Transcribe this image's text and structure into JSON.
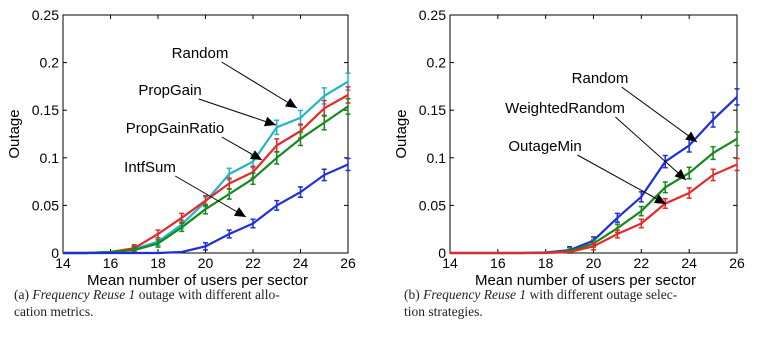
{
  "chart_data": [
    {
      "type": "line",
      "xlabel": "Mean number of users per sector",
      "ylabel": "Outage",
      "xlim": [
        14,
        26
      ],
      "ylim": [
        0,
        0.25
      ],
      "xticks": [
        14,
        16,
        18,
        20,
        22,
        24,
        26
      ],
      "yticks": [
        "0",
        "0.05",
        "0.1",
        "0.15",
        "0.2",
        "0.25"
      ],
      "x": [
        14,
        15,
        16,
        17,
        18,
        19,
        20,
        21,
        22,
        23,
        24,
        25,
        26
      ],
      "series": [
        {
          "name": "Random",
          "color": "#27b3c8",
          "values": [
            0,
            0,
            0.001,
            0.004,
            0.012,
            0.03,
            0.054,
            0.083,
            0.096,
            0.132,
            0.142,
            0.165,
            0.18
          ]
        },
        {
          "name": "PropGain",
          "color": "#e32a2a",
          "values": [
            0,
            0,
            0.001,
            0.005,
            0.02,
            0.037,
            0.055,
            0.073,
            0.085,
            0.113,
            0.128,
            0.152,
            0.166
          ]
        },
        {
          "name": "PropGainRatio",
          "color": "#16891c",
          "values": [
            0,
            0,
            0.001,
            0.003,
            0.01,
            0.027,
            0.046,
            0.062,
            0.078,
            0.1,
            0.12,
            0.137,
            0.154
          ]
        },
        {
          "name": "IntfSum",
          "color": "#1f2ed6",
          "values": [
            0,
            0,
            0,
            0,
            0,
            0.001,
            0.007,
            0.02,
            0.031,
            0.05,
            0.064,
            0.082,
            0.093
          ]
        }
      ],
      "annotations": [
        {
          "text": "Random",
          "series": "Random",
          "x": 24
        },
        {
          "text": "PropGain",
          "series": "PropGain",
          "x": 23
        },
        {
          "text": "PropGainRatio",
          "series": "PropGainRatio",
          "x": 22
        },
        {
          "text": "IntfSum",
          "series": "IntfSum",
          "x": 22
        }
      ]
    },
    {
      "type": "line",
      "xlabel": "Mean number of users per sector",
      "ylabel": "Outage",
      "xlim": [
        14,
        26
      ],
      "ylim": [
        0,
        0.25
      ],
      "xticks": [
        14,
        16,
        18,
        20,
        22,
        24,
        26
      ],
      "yticks": [
        "0",
        "0.05",
        "0.1",
        "0.15",
        "0.2",
        "0.25"
      ],
      "x": [
        14,
        15,
        16,
        17,
        18,
        19,
        20,
        21,
        22,
        23,
        24,
        25,
        26
      ],
      "series": [
        {
          "name": "Random",
          "color": "#1f2ed6",
          "values": [
            0,
            0,
            0,
            0,
            0.0005,
            0.003,
            0.013,
            0.037,
            0.059,
            0.096,
            0.113,
            0.14,
            0.164
          ]
        },
        {
          "name": "WeightedRandom",
          "color": "#16891c",
          "values": [
            0,
            0,
            0,
            0,
            0.0003,
            0.002,
            0.01,
            0.026,
            0.044,
            0.069,
            0.084,
            0.105,
            0.12
          ]
        },
        {
          "name": "OutageMin",
          "color": "#e32a2a",
          "values": [
            0,
            0,
            0,
            0,
            0,
            0.001,
            0.007,
            0.02,
            0.031,
            0.052,
            0.063,
            0.082,
            0.093
          ]
        }
      ],
      "annotations": [
        {
          "text": "Random",
          "series": "Random",
          "x": 23.7
        },
        {
          "text": "WeightedRandom",
          "series": "WeightedRandom",
          "x": 23.4
        },
        {
          "text": "OutageMin",
          "series": "OutageMin",
          "x": 22.8
        }
      ]
    }
  ],
  "captions": [
    {
      "label": "(a)",
      "italic": "Frequency Reuse 1",
      "line1_rest": " outage with different allo-",
      "line2": "cation metrics."
    },
    {
      "label": "(b)",
      "italic": "Frequency Reuse 1",
      "line1_rest": " with different outage selec-",
      "line2": "tion strategies."
    }
  ]
}
